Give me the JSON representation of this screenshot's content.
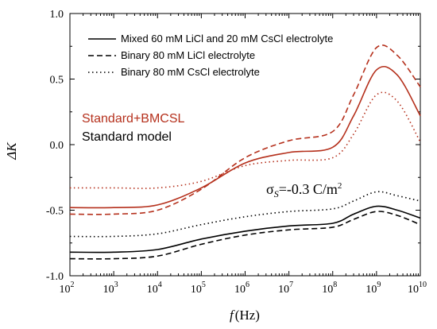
{
  "chart_data": {
    "type": "line",
    "xlabel": "f (Hz)",
    "xlabel_var": "f",
    "xlabel_unit": "(Hz)",
    "ylabel": "ΔK",
    "xscale": "log",
    "xlim": [
      100,
      10000000000
    ],
    "ylim": [
      -1.0,
      1.0
    ],
    "y_ticks": [
      "-1.0",
      "-0.5",
      "0.0",
      "0.5",
      "1.0"
    ],
    "x_tick_exponents": [
      "2",
      "3",
      "4",
      "5",
      "6",
      "7",
      "8",
      "9",
      "10"
    ],
    "x_tick_base": "10",
    "legend_position": "top",
    "legend": [
      {
        "label": "Mixed 60 mM LiCl and 20 mM CsCl electrolyte",
        "style": "solid"
      },
      {
        "label": "Binary 80 mM LiCl electrolyte",
        "style": "dashed"
      },
      {
        "label": "Binary 80 mM CsCl electrolyte",
        "style": "dotted"
      }
    ],
    "model_labels": [
      {
        "label": "Standard+BMCSL",
        "color": "#b5301c"
      },
      {
        "label": "Standard model",
        "color": "#000000"
      }
    ],
    "annotation": {
      "sigma": "σ",
      "subscript": "S",
      "value": "=-0.3 C/m",
      "superscript": "2"
    },
    "series": [
      {
        "model": "Standard+BMCSL",
        "electrolyte": "Mixed",
        "style": "solid",
        "color": "#b5301c",
        "x": [
          100,
          1000,
          10000,
          100000,
          1000000,
          10000000,
          100000000,
          300000000,
          1000000000,
          3000000000,
          10000000000
        ],
        "values": [
          -0.48,
          -0.48,
          -0.46,
          -0.33,
          -0.14,
          -0.06,
          -0.02,
          0.22,
          0.57,
          0.53,
          0.22
        ]
      },
      {
        "model": "Standard+BMCSL",
        "electrolyte": "Binary LiCl",
        "style": "dashed",
        "color": "#b5301c",
        "x": [
          100,
          1000,
          10000,
          100000,
          1000000,
          10000000,
          100000000,
          300000000,
          1000000000,
          3000000000,
          10000000000
        ],
        "values": [
          -0.53,
          -0.53,
          -0.5,
          -0.34,
          -0.1,
          0.03,
          0.1,
          0.38,
          0.74,
          0.68,
          0.44
        ]
      },
      {
        "model": "Standard+BMCSL",
        "electrolyte": "Binary CsCl",
        "style": "dotted",
        "color": "#b5301c",
        "x": [
          100,
          1000,
          10000,
          100000,
          1000000,
          10000000,
          100000000,
          300000000,
          1000000000,
          3000000000,
          10000000000
        ],
        "values": [
          -0.33,
          -0.33,
          -0.33,
          -0.28,
          -0.16,
          -0.12,
          -0.1,
          0.08,
          0.38,
          0.33,
          0.02
        ]
      },
      {
        "model": "Standard",
        "electrolyte": "Mixed",
        "style": "solid",
        "color": "#000000",
        "x": [
          100,
          1000,
          10000,
          100000,
          1000000,
          10000000,
          100000000,
          300000000,
          1000000000,
          3000000000,
          10000000000
        ],
        "values": [
          -0.82,
          -0.82,
          -0.8,
          -0.72,
          -0.66,
          -0.62,
          -0.6,
          -0.53,
          -0.47,
          -0.5,
          -0.56
        ]
      },
      {
        "model": "Standard",
        "electrolyte": "Binary LiCl",
        "style": "dashed",
        "color": "#000000",
        "x": [
          100,
          1000,
          10000,
          100000,
          1000000,
          10000000,
          100000000,
          300000000,
          1000000000,
          3000000000,
          10000000000
        ],
        "values": [
          -0.87,
          -0.87,
          -0.85,
          -0.76,
          -0.69,
          -0.65,
          -0.63,
          -0.57,
          -0.51,
          -0.54,
          -0.61
        ]
      },
      {
        "model": "Standard",
        "electrolyte": "Binary CsCl",
        "style": "dotted",
        "color": "#000000",
        "x": [
          100,
          1000,
          10000,
          100000,
          1000000,
          10000000,
          100000000,
          300000000,
          1000000000,
          3000000000,
          10000000000
        ],
        "values": [
          -0.7,
          -0.7,
          -0.68,
          -0.61,
          -0.55,
          -0.51,
          -0.49,
          -0.43,
          -0.36,
          -0.39,
          -0.43
        ]
      }
    ]
  }
}
